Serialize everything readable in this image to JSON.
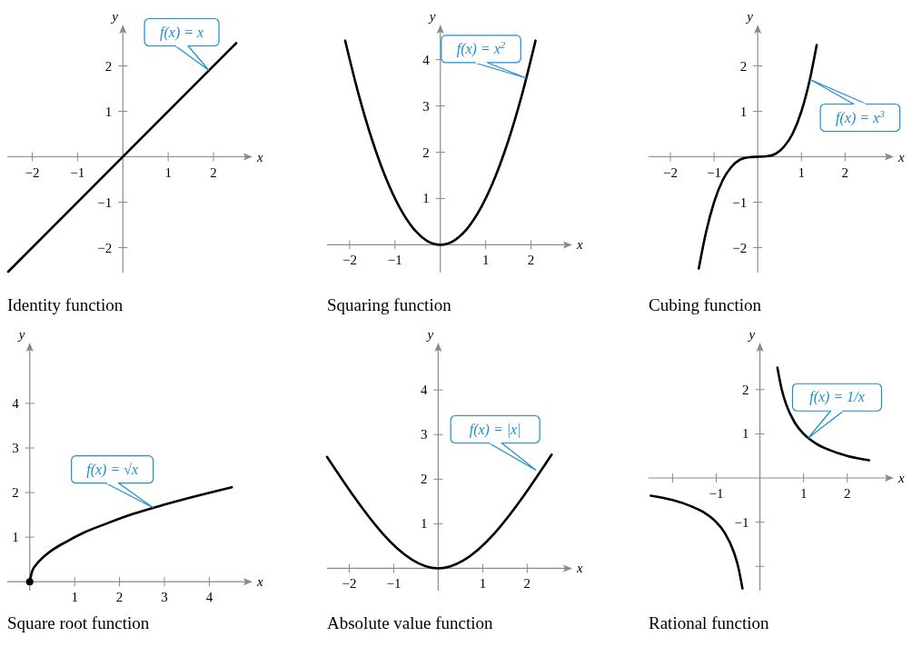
{
  "chart_data": [
    {
      "type": "line",
      "title": "Identity function",
      "xlabel": "x",
      "ylabel": "y",
      "xlim": [
        -2.55,
        2.7
      ],
      "ylim": [
        -2.55,
        2.75
      ],
      "xticks": [
        -2,
        -1,
        1,
        2
      ],
      "yticks": [
        -2,
        -1,
        1,
        2
      ],
      "series": [
        {
          "color": "#000000",
          "x": [
            -2.53,
            2.5
          ],
          "values": [
            -2.53,
            2.5
          ]
        }
      ],
      "annotations": [
        {
          "text": "f(x) = x",
          "x": 1.9,
          "y": 1.9
        }
      ]
    },
    {
      "type": "line",
      "title": "Squaring function",
      "xlabel": "x",
      "ylabel": "y",
      "xlim": [
        -2.5,
        2.75
      ],
      "ylim": [
        -0.6,
        4.6
      ],
      "xticks": [
        -2,
        -1,
        1,
        2
      ],
      "yticks": [
        1,
        2,
        3,
        4
      ],
      "series": [
        {
          "color": "#000000",
          "x": [
            -2.1,
            -1.8,
            -1.5,
            -1.2,
            -0.9,
            -0.6,
            -0.3,
            0,
            0.3,
            0.6,
            0.9,
            1.2,
            1.5,
            1.8,
            2.1
          ],
          "values": [
            4.41,
            3.24,
            2.25,
            1.44,
            0.81,
            0.36,
            0.09,
            0,
            0.09,
            0.36,
            0.81,
            1.44,
            2.25,
            3.24,
            4.41
          ]
        }
      ],
      "annotations": [
        {
          "text": "f(x) = x$^{2}$",
          "x": 1.9,
          "y": 3.6
        }
      ]
    },
    {
      "type": "line",
      "title": "Cubing function",
      "xlabel": "x",
      "ylabel": "y",
      "xlim": [
        -2.5,
        2.95
      ],
      "ylim": [
        -2.55,
        2.75
      ],
      "xticks": [
        -2,
        -1,
        1,
        2
      ],
      "yticks": [
        -2,
        -1,
        1,
        2
      ],
      "series": [
        {
          "color": "#000000",
          "x": [
            -1.35,
            -1.2,
            -1,
            -0.8,
            -0.6,
            -0.4,
            -0.2,
            0,
            0.2,
            0.4,
            0.6,
            0.8,
            1,
            1.2,
            1.35
          ],
          "values": [
            -2.46,
            -1.73,
            -1,
            -0.51,
            -0.22,
            -0.06,
            -0.01,
            0,
            0.01,
            0.06,
            0.22,
            0.51,
            1,
            1.73,
            2.46
          ]
        }
      ],
      "annotations": [
        {
          "text": "f(x) = x$^{3}$",
          "x": 1.2,
          "y": 1.7
        }
      ]
    },
    {
      "type": "line",
      "title": "Square root function",
      "xlabel": "x",
      "ylabel": "y",
      "xlim": [
        -0.5,
        4.8
      ],
      "ylim": [
        -0.2,
        5.2
      ],
      "xticks": [
        1,
        2,
        3,
        4
      ],
      "yticks": [
        1,
        2,
        3,
        4
      ],
      "series": [
        {
          "color": "#000000",
          "x": [
            0,
            0.05,
            0.15,
            0.3,
            0.5,
            0.8,
            1.2,
            1.7,
            2.3,
            3,
            3.7,
            4.5
          ],
          "values": [
            0,
            0.22,
            0.39,
            0.55,
            0.71,
            0.89,
            1.1,
            1.3,
            1.52,
            1.73,
            1.92,
            2.12
          ]
        },
        {
          "type": "scatter",
          "color": "#000000",
          "x": [
            0
          ],
          "values": [
            0
          ]
        }
      ],
      "annotations": [
        {
          "text": "f(x) = √x",
          "x": 2.75,
          "y": 1.66
        }
      ]
    },
    {
      "type": "line",
      "title": "Absolute value function",
      "xlabel": "x",
      "ylabel": "y",
      "xlim": [
        -2.5,
        2.85
      ],
      "ylim": [
        -0.5,
        4.9
      ],
      "xticks": [
        -2,
        -1,
        1,
        2
      ],
      "yticks": [
        1,
        2,
        3,
        4
      ],
      "series": [
        {
          "color": "#000000",
          "x": [
            -2.5,
            0,
            2.55
          ],
          "values": [
            2.5,
            0,
            2.55
          ]
        }
      ],
      "annotations": [
        {
          "text": "f(x) = |x|",
          "x": 2.2,
          "y": 2.2
        }
      ]
    },
    {
      "type": "line",
      "title": "Rational function",
      "xlabel": "x",
      "ylabel": "y",
      "xlim": [
        -2.55,
        2.9
      ],
      "ylim": [
        -2.55,
        2.9
      ],
      "xticks": [
        {
          "value": -2,
          "label": null
        },
        -1,
        1,
        2
      ],
      "yticks": [
        {
          "value": -2,
          "label": null
        },
        -1,
        1,
        2
      ],
      "series": [
        {
          "color": "#000000",
          "x": [
            0.4,
            0.5,
            0.6,
            0.8,
            1,
            1.3,
            1.6,
            2,
            2.5
          ],
          "values": [
            2.5,
            2,
            1.67,
            1.25,
            1,
            0.77,
            0.63,
            0.5,
            0.4
          ]
        },
        {
          "color": "#000000",
          "x": [
            -2.5,
            -2,
            -1.6,
            -1.3,
            -1,
            -0.8,
            -0.6,
            -0.5,
            -0.4
          ],
          "values": [
            -0.4,
            -0.5,
            -0.63,
            -0.77,
            -1,
            -1.25,
            -1.67,
            -2,
            -2.5
          ]
        }
      ],
      "annotations": [
        {
          "text": "f(x) = 1/x",
          "x": 1.1,
          "y": 0.9
        }
      ]
    }
  ]
}
